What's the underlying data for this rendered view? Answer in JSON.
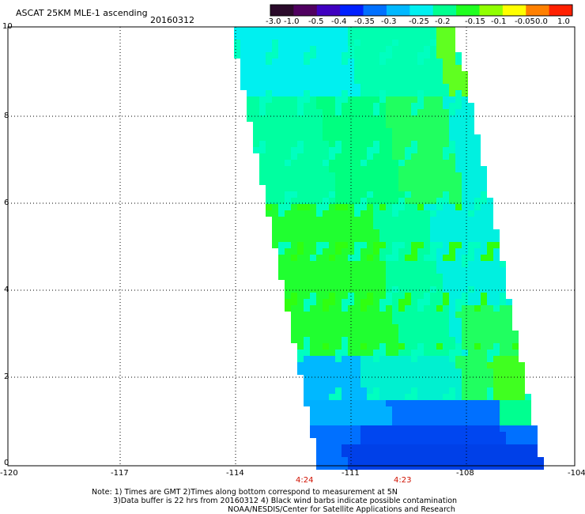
{
  "header": {
    "title": "ASCAT 25KM MLE-1 ascending",
    "date": "20160312"
  },
  "colorbar": {
    "labels": [
      "-3.0",
      "-1.0",
      "-0.5",
      "-0.4",
      "-0.35",
      "-0.3",
      "-0.25",
      "-0.2",
      "-0.15",
      "-0.1",
      "-0.05",
      "0.0",
      "1.0"
    ],
    "colors": [
      "#2a0a2a",
      "#500060",
      "#4000c0",
      "#0020ff",
      "#0070ff",
      "#00b8ff",
      "#00f0f0",
      "#00ff90",
      "#20ff20",
      "#90ff00",
      "#ffff00",
      "#ff8000",
      "#ff2000"
    ]
  },
  "map": {
    "lon_range": [
      -120,
      -104
    ],
    "lat_range": [
      0,
      10
    ],
    "x_ticks": [
      "-120",
      "-117",
      "-114",
      "-111",
      "-108",
      "-104"
    ],
    "y_ticks": [
      "0",
      "2",
      "4",
      "6",
      "8",
      "10"
    ],
    "time_labels": [
      "4:24",
      "4:23"
    ],
    "time_color": "#d01000"
  },
  "notes": [
    "Note: 1) Times are GMT 2)Times along bottom correspond to measurement at 5N",
    "3)Data buffer is 22 hrs from 20160312 4) Black wind barbs indicate possible contamination",
    "NOAA/NESDIS/Center for Satellite Applications and Research"
  ]
}
